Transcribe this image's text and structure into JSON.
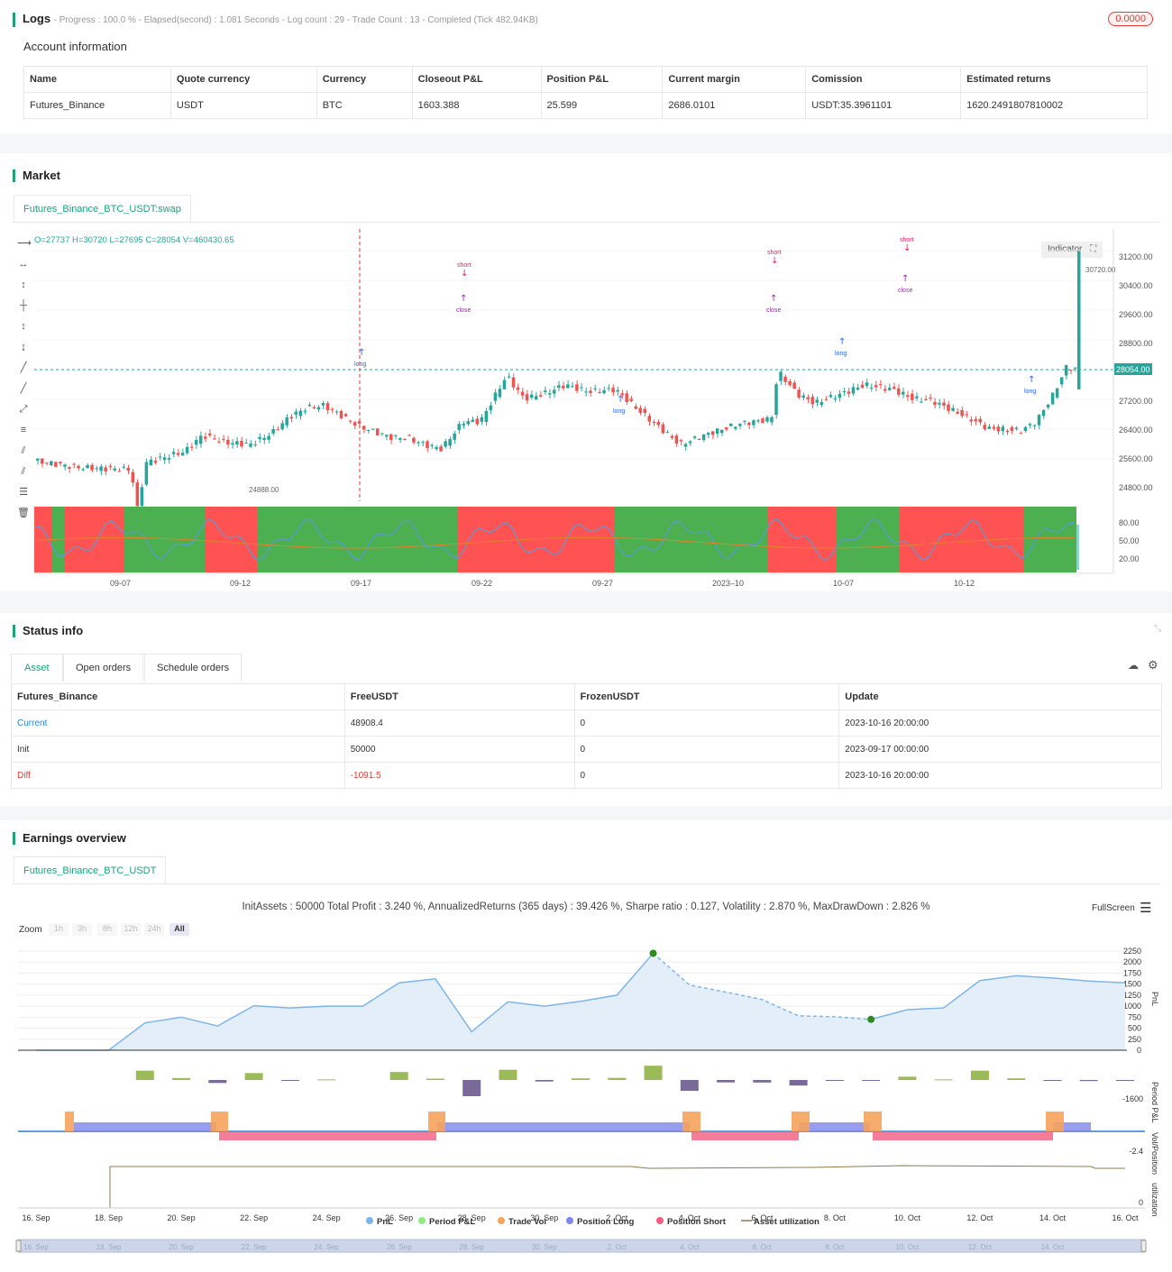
{
  "logs": {
    "title": "Logs",
    "summary": "- Progress : 100.0 % - Elapsed(second) : 1.081  Seconds - Log count : 29 - Trade Count : 13 - Completed (Tick 482.94KB)",
    "badge": "0.0000"
  },
  "account": {
    "title": "Account information",
    "headers": [
      "Name",
      "Quote currency",
      "Currency",
      "Closeout P&L",
      "Position P&L",
      "Current margin",
      "Comission",
      "Estimated returns"
    ],
    "row": [
      "Futures_Binance",
      "USDT",
      "BTC",
      "1603.388",
      "25.599",
      "2686.0101",
      "USDT:35.3961101",
      "1620.2491807810002"
    ]
  },
  "market": {
    "title": "Market",
    "tab": "Futures_Binance_BTC_USDT:swap",
    "ohlc": "O=27737 H=30720 L=27695 C=28054 V=460430.65",
    "indicator_button": "Indicator",
    "price_ticks": [
      "31200.00",
      "30400.00",
      "29600.00",
      "28800.00",
      "27200.00",
      "26400.00",
      "25600.00",
      "24800.00"
    ],
    "current_price": "28054.00",
    "high_label": "30720.00",
    "low_label": "24888.00",
    "osc_ticks": [
      "80.00",
      "50.00",
      "20.00"
    ],
    "date_ticks": [
      "09-07",
      "09-12",
      "09-17",
      "09-22",
      "09-27",
      "2023–10",
      "10-07",
      "10-12"
    ],
    "signals": [
      "short",
      "short",
      "short",
      "long",
      "long",
      "long",
      "long",
      "close",
      "close",
      "close"
    ],
    "colors": {
      "up": "#26a69a",
      "down": "#ef5350",
      "green_zone": "#4caf50",
      "red_zone": "#ff5252",
      "signal_long": "#2962ff",
      "signal_short": "#e91e63",
      "signal_close": "#9c27b0"
    }
  },
  "status": {
    "title": "Status info",
    "tabs": [
      "Asset",
      "Open orders",
      "Schedule orders"
    ],
    "headers": [
      "Futures_Binance",
      "FreeUSDT",
      "FrozenUSDT",
      "Update"
    ],
    "rows": [
      [
        "Current",
        "48908.4",
        "0",
        "2023-10-16 20:00:00"
      ],
      [
        "Init",
        "50000",
        "0",
        "2023-09-17 00:00:00"
      ],
      [
        "Diff",
        "-1091.5",
        "0",
        "2023-10-16 20:00:00"
      ]
    ]
  },
  "earnings": {
    "title": "Earnings overview",
    "tab": "Futures_Binance_BTC_USDT",
    "summary": "InitAssets : 50000 Total Profit : 3.240 %, AnnualizedReturns (365 days) : 39.426 %, Sharpe ratio : 0.127, Volatility : 2.870 %, MaxDrawDown : 2.826 %",
    "fullscreen": "FullScreen",
    "zoom_label": "Zoom",
    "zoom_options": [
      "1h",
      "3h",
      "8h",
      "12h",
      "24h",
      "All"
    ],
    "pnl_ticks": [
      "2250",
      "2000",
      "1750",
      "1500",
      "1250",
      "1000",
      "750",
      "500",
      "250",
      "0"
    ],
    "axis_titles": [
      "PnL",
      "Period P&L",
      "Vol/Position",
      "utilization"
    ],
    "period_min": "-1600",
    "vol_min": "-2.4",
    "util_min": "0",
    "x_dates": [
      "16. Sep",
      "18. Sep",
      "20. Sep",
      "22. Sep",
      "24. Sep",
      "26. Sep",
      "28. Sep",
      "30. Sep",
      "2. Oct",
      "4. Oct",
      "6. Oct",
      "8. Oct",
      "10. Oct",
      "12. Oct",
      "14. Oct",
      "16. Oct"
    ],
    "legend": [
      {
        "label": "PnL",
        "color": "#7cb5ec"
      },
      {
        "label": "Period P&L",
        "color": "#90ed7d"
      },
      {
        "label": "Trade Vol",
        "color": "#f7a35c"
      },
      {
        "label": "Position Long",
        "color": "#8085e9"
      },
      {
        "label": "Position Short",
        "color": "#f15c80"
      },
      {
        "label": "Asset utilization",
        "color": "#8d7b4a"
      }
    ]
  },
  "chart_data": {
    "type": "line",
    "title": "",
    "x": [
      "16. Sep",
      "17. Sep",
      "18. Sep",
      "19. Sep",
      "20. Sep",
      "21. Sep",
      "22. Sep",
      "23. Sep",
      "24. Sep",
      "25. Sep",
      "26. Sep",
      "27. Sep",
      "28. Sep",
      "29. Sep",
      "30. Sep",
      "1. Oct",
      "2. Oct",
      "3. Oct",
      "4. Oct",
      "5. Oct",
      "6. Oct",
      "7. Oct",
      "8. Oct",
      "9. Oct",
      "10. Oct",
      "11. Oct",
      "12. Oct",
      "13. Oct",
      "14. Oct",
      "15. Oct",
      "16. Oct"
    ],
    "series": [
      {
        "name": "PnL",
        "values": [
          0,
          0,
          0,
          620,
          750,
          550,
          1010,
          960,
          1000,
          1000,
          1530,
          1620,
          420,
          1100,
          1000,
          1110,
          1250,
          2200,
          1480,
          1320,
          1150,
          780,
          760,
          700,
          920,
          960,
          1580,
          1690,
          1640,
          1570,
          1530
        ]
      }
    ],
    "ylim": [
      0,
      2250
    ]
  }
}
